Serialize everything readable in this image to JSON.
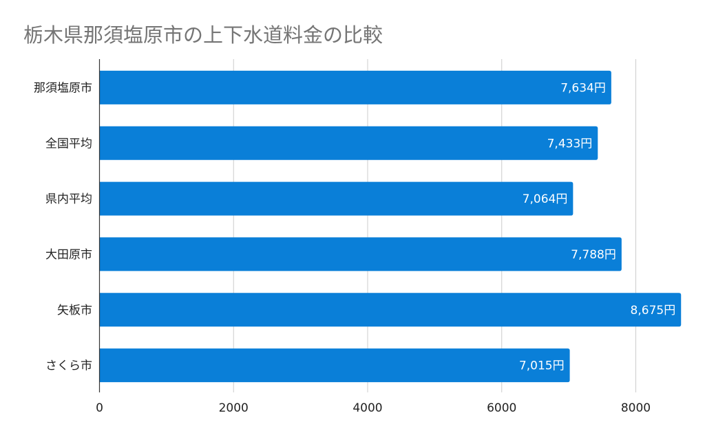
{
  "chart_data": {
    "type": "bar",
    "orientation": "horizontal",
    "title": "栃木県那須塩原市の上下水道料金の比較",
    "categories": [
      "那須塩原市",
      "全国平均",
      "県内平均",
      "大田原市",
      "矢板市",
      "さくら市"
    ],
    "values": [
      7634,
      7433,
      7064,
      7788,
      8675,
      7015
    ],
    "data_labels": [
      "7,634円",
      "7,433円",
      "7,064円",
      "7,788円",
      "8,675円",
      "7,015円"
    ],
    "xlabel": "",
    "ylabel": "",
    "xlim": [
      0,
      8800
    ],
    "xticks": [
      0,
      2000,
      4000,
      6000,
      8000
    ],
    "xtick_labels": [
      "0",
      "2000",
      "4000",
      "6000",
      "8000"
    ],
    "grid": true,
    "legend": "none",
    "colors": {
      "bar": "#0a7fd8",
      "grid": "#cccccc",
      "axis": "#333333",
      "title": "#757575"
    }
  }
}
